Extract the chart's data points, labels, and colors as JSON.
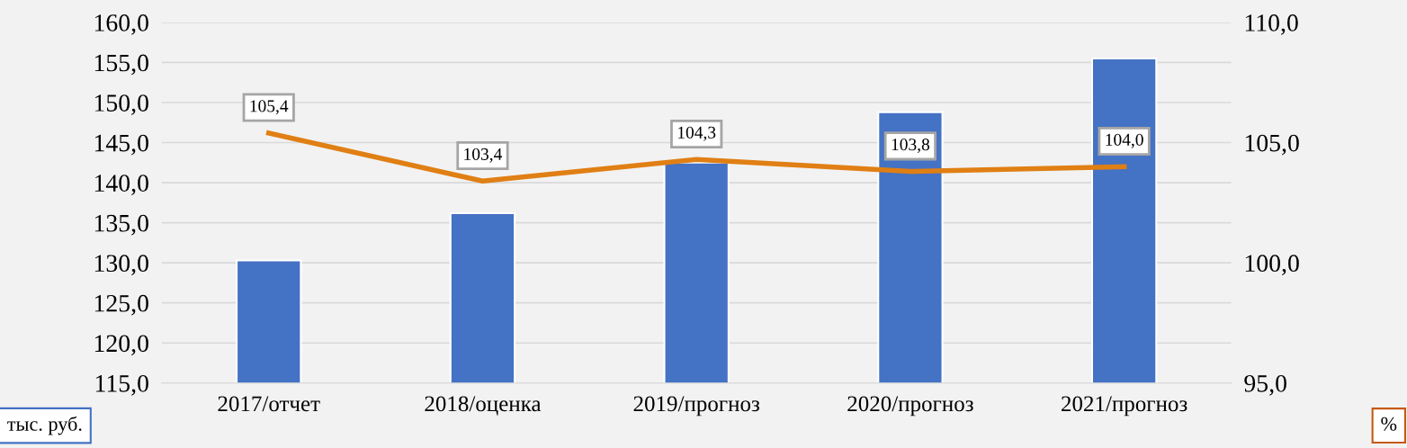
{
  "chart_data": {
    "type": "bar",
    "categories": [
      "2017/отчет",
      "2018/оценка",
      "2019/прогноз",
      "2020/прогноз",
      "2021/прогноз"
    ],
    "ylabel": "тыс. руб.",
    "y2label": "%",
    "series": [
      {
        "color": "#4472c4",
        "values": [
          130.3,
          136.2,
          142.5,
          148.8,
          155.5
        ]
      },
      {
        "type": "line",
        "axis": "y2",
        "color": "#e07f14",
        "values": [
          105.4,
          103.4,
          104.3,
          103.8,
          104.0
        ],
        "value_labels": [
          "105,4",
          "103,4",
          "104,3",
          "103,8",
          "104,0"
        ]
      }
    ],
    "ylim": [
      115,
      160
    ],
    "yticks": [
      {
        "value": 115,
        "label": "115,0"
      },
      {
        "value": 120,
        "label": "120,0"
      },
      {
        "value": 125,
        "label": "125,0"
      },
      {
        "value": 130,
        "label": "130,0"
      },
      {
        "value": 135,
        "label": "135,0"
      },
      {
        "value": 140,
        "label": "140,0"
      },
      {
        "value": 145,
        "label": "145,0"
      },
      {
        "value": 150,
        "label": "150,0"
      },
      {
        "value": 155,
        "label": "155,0"
      },
      {
        "value": 160,
        "label": "160,0"
      }
    ],
    "y2lim": [
      95,
      110
    ],
    "y2ticks": [
      {
        "value": 95,
        "label": "95,0"
      },
      {
        "value": 100,
        "label": "100,0"
      },
      {
        "value": 105,
        "label": "105,0"
      },
      {
        "value": 110,
        "label": "110,0"
      }
    ],
    "grid": "y",
    "legend": false
  }
}
